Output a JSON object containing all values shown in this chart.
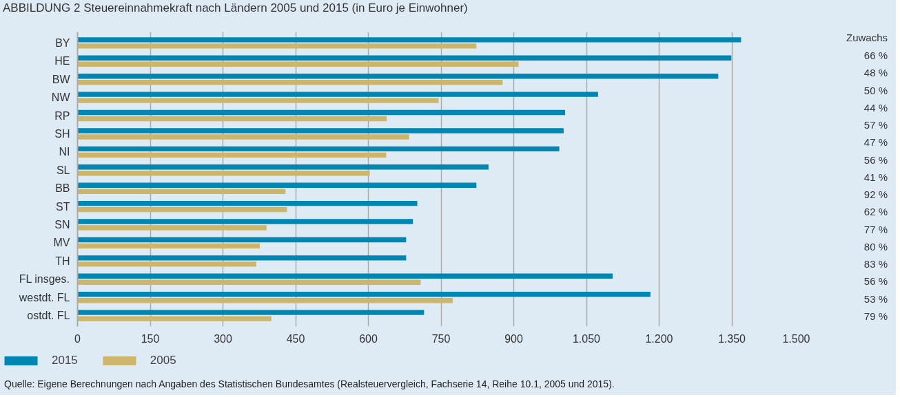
{
  "chart_data": {
    "type": "bar",
    "orientation": "horizontal",
    "title": "ABBILDUNG 2 Steuereinnahmekraft nach Ländern 2005 und 2015 (in Euro je Einwohner)",
    "categories": [
      "BY",
      "HE",
      "BW",
      "NW",
      "RP",
      "SH",
      "NI",
      "SL",
      "BB",
      "ST",
      "SN",
      "MV",
      "TH",
      "FL insges.",
      "westdt. FL",
      "ostdt. FL"
    ],
    "series": [
      {
        "name": "2015",
        "color": "#0086b3",
        "values": [
          1369,
          1349,
          1322,
          1074,
          1006,
          1003,
          994,
          848,
          823,
          701,
          692,
          678,
          678,
          1104,
          1182,
          715
        ]
      },
      {
        "name": "2005",
        "color": "#cdb56b",
        "values": [
          823,
          910,
          877,
          745,
          638,
          684,
          637,
          603,
          429,
          432,
          390,
          376,
          369,
          708,
          774,
          400
        ]
      }
    ],
    "xlim": [
      0,
      1500
    ],
    "xticks": [
      0,
      150,
      300,
      450,
      600,
      750,
      900,
      {
        "value": 1050,
        "label": "1.050"
      },
      {
        "value": 1200,
        "label": "1.200"
      },
      {
        "value": 1350,
        "label": "1.350"
      },
      {
        "value": 1500,
        "label": "1.500"
      }
    ],
    "grid": "x",
    "legend": "bottom",
    "annotations": [
      "Zuwachs",
      "66 %",
      "48 %",
      "50 %",
      "44 %",
      "57 %",
      "47 %",
      "56 %",
      "41 %",
      "92 %",
      "62 %",
      "77 %",
      "80 %",
      "83 %",
      "56 %",
      "53 %",
      "79 %",
      "Quelle: Eigene Berechnungen nach Angaben des Statistischen Bundesamtes (Realsteuervergleich, Fachserie 14, Reihe 10.1, 2005 und 2015)."
    ]
  }
}
